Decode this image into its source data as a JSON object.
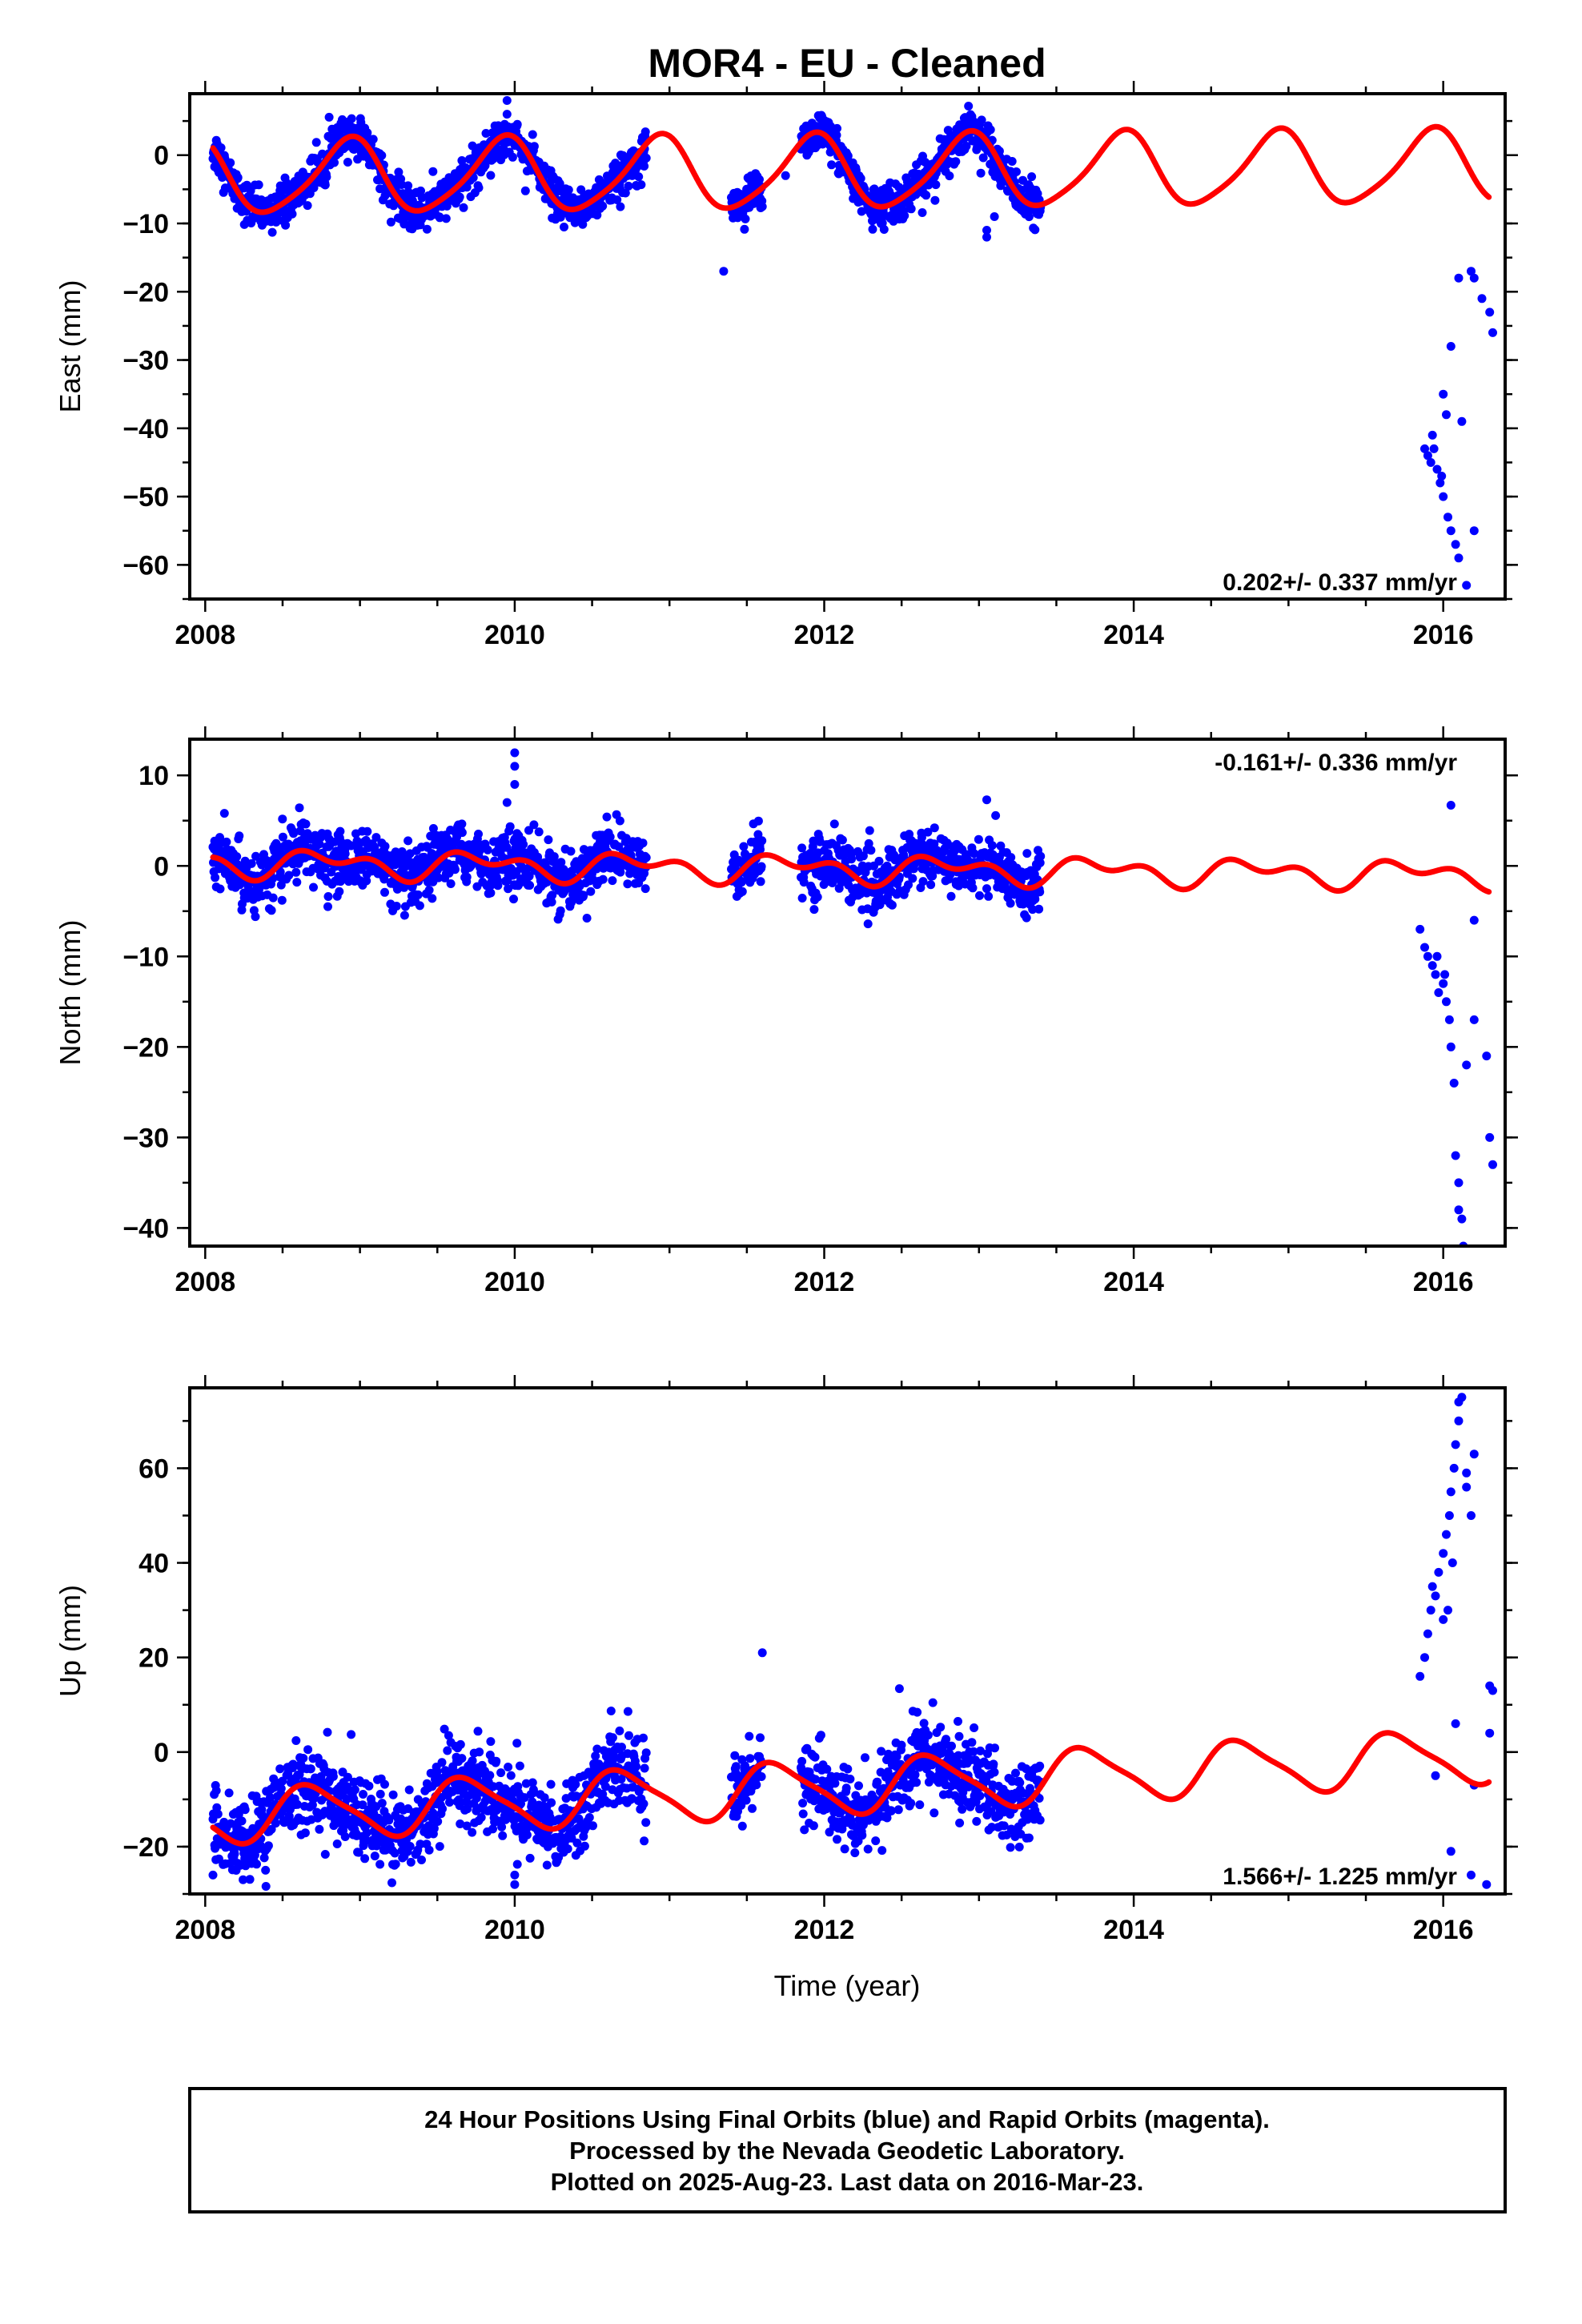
{
  "title": "MOR4  - EU - Cleaned",
  "xlabel": "Time (year)",
  "caption": {
    "lines": [
      "24 Hour Positions Using Final Orbits (blue) and Rapid Orbits (magenta).",
      "Processed by the Nevada Geodetic Laboratory.",
      "Plotted on 2025-Aug-23. Last data on 2016-Mar-23."
    ]
  },
  "colors": {
    "final_orbits": "#0000ff",
    "model": "#ff0000",
    "frame": "#000000"
  },
  "chart_data": [
    {
      "type": "scatter",
      "component": "east",
      "ylabel": "East (mm)",
      "rate_label": "0.202+/- 0.337 mm/yr",
      "xlim": [
        2007.9,
        2016.4
      ],
      "ylim": [
        -65,
        9
      ],
      "x_ticks": [
        2008,
        2010,
        2012,
        2014,
        2016
      ],
      "y_ticks": [
        0,
        -10,
        -20,
        -30,
        -40,
        -50,
        -60
      ],
      "y_tick_labels": [
        "0",
        "−10",
        "−20",
        "−30",
        "−40",
        "−50",
        "−60"
      ],
      "model": {
        "mean": -2.6,
        "trend": 0.2,
        "annual_amp": 5.3,
        "annual_phase": 2.05,
        "semiannual_amp": 0.9,
        "semiannual_phase": 1.6
      },
      "data_segments": [
        [
          2008.05,
          2010.85
        ],
        [
          2011.4,
          2011.6
        ],
        [
          2011.85,
          2013.4
        ]
      ],
      "outliers": [
        [
          2009.95,
          8
        ],
        [
          2009.95,
          6
        ],
        [
          2013.05,
          -11
        ],
        [
          2013.05,
          -12
        ],
        [
          2013.1,
          -9
        ],
        [
          2011.35,
          -17
        ],
        [
          2011.75,
          -3
        ],
        [
          2015.88,
          -43
        ],
        [
          2015.9,
          -44
        ],
        [
          2015.92,
          -45
        ],
        [
          2015.94,
          -43
        ],
        [
          2015.96,
          -46
        ],
        [
          2015.98,
          -48
        ],
        [
          2016.0,
          -50
        ],
        [
          2016.0,
          -35
        ],
        [
          2016.02,
          -38
        ],
        [
          2016.03,
          -53
        ],
        [
          2016.05,
          -55
        ],
        [
          2016.05,
          -28
        ],
        [
          2016.08,
          -57
        ],
        [
          2016.1,
          -59
        ],
        [
          2016.1,
          -18
        ],
        [
          2016.12,
          -39
        ],
        [
          2016.15,
          -63
        ],
        [
          2016.18,
          -17
        ],
        [
          2016.2,
          -55
        ],
        [
          2016.2,
          -18
        ],
        [
          2016.25,
          -21
        ],
        [
          2016.3,
          -23
        ],
        [
          2016.32,
          -26
        ],
        [
          2015.93,
          -41
        ],
        [
          2015.99,
          -47
        ]
      ]
    },
    {
      "type": "scatter",
      "component": "north",
      "ylabel": "North (mm)",
      "rate_label": "-0.161+/- 0.336 mm/yr",
      "xlim": [
        2007.9,
        2016.4
      ],
      "ylim": [
        -42,
        14
      ],
      "x_ticks": [
        2008,
        2010,
        2012,
        2014,
        2016
      ],
      "y_ticks": [
        10,
        0,
        -10,
        -20,
        -30,
        -40
      ],
      "y_tick_labels": [
        "10",
        "0",
        "−10",
        "−20",
        "−30",
        "−40"
      ],
      "model": {
        "mean": -0.3,
        "trend": -0.16,
        "annual_amp": 1.1,
        "annual_phase": 3.0,
        "semiannual_amp": 0.9,
        "semiannual_phase": 0.5
      },
      "data_segments": [
        [
          2008.05,
          2010.85
        ],
        [
          2011.4,
          2011.6
        ],
        [
          2011.85,
          2013.4
        ]
      ],
      "outliers": [
        [
          2010.0,
          12.5
        ],
        [
          2010.0,
          11
        ],
        [
          2010.0,
          9
        ],
        [
          2009.95,
          7
        ],
        [
          2013.05,
          7.3
        ],
        [
          2016.05,
          6.7
        ],
        [
          2015.85,
          -7
        ],
        [
          2015.88,
          -9
        ],
        [
          2015.9,
          -10
        ],
        [
          2015.93,
          -11
        ],
        [
          2015.95,
          -12
        ],
        [
          2015.97,
          -14
        ],
        [
          2016.0,
          -13
        ],
        [
          2016.02,
          -15
        ],
        [
          2016.04,
          -17
        ],
        [
          2016.05,
          -20
        ],
        [
          2016.07,
          -24
        ],
        [
          2016.08,
          -32
        ],
        [
          2016.1,
          -35
        ],
        [
          2016.1,
          -38
        ],
        [
          2016.12,
          -39
        ],
        [
          2016.13,
          -42
        ],
        [
          2016.15,
          -22
        ],
        [
          2016.2,
          -17
        ],
        [
          2016.2,
          -6
        ],
        [
          2016.28,
          -21
        ],
        [
          2016.3,
          -30
        ],
        [
          2016.32,
          -33
        ],
        [
          2015.96,
          -10
        ],
        [
          2016.01,
          -12
        ]
      ]
    },
    {
      "type": "scatter",
      "component": "up",
      "ylabel": "Up (mm)",
      "rate_label": "1.566+/- 1.225 mm/yr",
      "xlim": [
        2007.9,
        2016.4
      ],
      "ylim": [
        -30,
        77
      ],
      "x_ticks": [
        2008,
        2010,
        2012,
        2014,
        2016
      ],
      "y_ticks": [
        60,
        40,
        20,
        0,
        -20
      ],
      "y_tick_labels": [
        "60",
        "40",
        "20",
        "0",
        "−20"
      ],
      "model": {
        "mean": -7.5,
        "trend": 1.566,
        "annual_amp": 5.5,
        "annual_phase": 3.5,
        "semiannual_amp": 1.2,
        "semiannual_phase": 0.8
      },
      "data_segments": [
        [
          2008.05,
          2010.85
        ],
        [
          2011.4,
          2011.6
        ],
        [
          2011.85,
          2013.4
        ]
      ],
      "outliers": [
        [
          2008.05,
          -26
        ],
        [
          2008.2,
          -25
        ],
        [
          2010.0,
          -28
        ],
        [
          2010.0,
          -26
        ],
        [
          2011.6,
          21
        ],
        [
          2015.85,
          16
        ],
        [
          2015.88,
          20
        ],
        [
          2015.9,
          25
        ],
        [
          2015.92,
          30
        ],
        [
          2015.95,
          33
        ],
        [
          2015.97,
          38
        ],
        [
          2016.0,
          42
        ],
        [
          2016.0,
          28
        ],
        [
          2016.02,
          46
        ],
        [
          2016.04,
          50
        ],
        [
          2016.05,
          55
        ],
        [
          2016.07,
          60
        ],
        [
          2016.08,
          65
        ],
        [
          2016.1,
          70
        ],
        [
          2016.1,
          74
        ],
        [
          2016.12,
          75
        ],
        [
          2016.15,
          59
        ],
        [
          2016.15,
          56
        ],
        [
          2016.18,
          50
        ],
        [
          2016.2,
          63
        ],
        [
          2015.95,
          -5
        ],
        [
          2016.05,
          -21
        ],
        [
          2016.08,
          6
        ],
        [
          2016.18,
          -26
        ],
        [
          2016.2,
          -7
        ],
        [
          2016.28,
          -28
        ],
        [
          2016.3,
          14
        ],
        [
          2016.32,
          13
        ],
        [
          2016.3,
          4
        ],
        [
          2015.93,
          35
        ],
        [
          2016.03,
          30
        ],
        [
          2016.06,
          40
        ]
      ]
    }
  ]
}
